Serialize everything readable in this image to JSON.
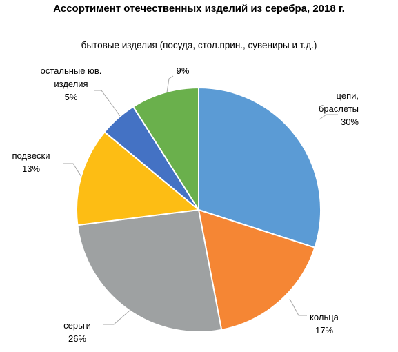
{
  "chart_data": {
    "type": "pie",
    "title": "Ассортимент отечественных изделий из серебра, 2018 г.",
    "subtitle": "",
    "slices": [
      {
        "name": "цепи, браслеты",
        "label_lines": [
          "цепи,",
          "браслеты"
        ],
        "value": 30,
        "label": "30%",
        "color": "#5b9bd5"
      },
      {
        "name": "кольца",
        "label_lines": [
          "кольца"
        ],
        "value": 17,
        "label": "17%",
        "color": "#f58634"
      },
      {
        "name": "серьги",
        "label_lines": [
          "серьги"
        ],
        "value": 26,
        "label": "26%",
        "color": "#9ea1a2"
      },
      {
        "name": "подвески",
        "label_lines": [
          "подвески"
        ],
        "value": 13,
        "label": "13%",
        "color": "#fdbd14"
      },
      {
        "name": "остальные юв. изделия",
        "label_lines": [
          "остальные юв.",
          "изделия"
        ],
        "value": 5,
        "label": "5%",
        "color": "#4472c4"
      },
      {
        "name": "бытовые изделия (посуда, стол.прин., сувениры и т.д.)",
        "label_lines": [
          "бытовые изделия (посуда, стол.прин., сувениры и т.д.)"
        ],
        "value": 9,
        "label": "9%",
        "color": "#6ab04c"
      }
    ],
    "start_angle_deg": 0,
    "direction": "clockwise",
    "legend": "none"
  }
}
